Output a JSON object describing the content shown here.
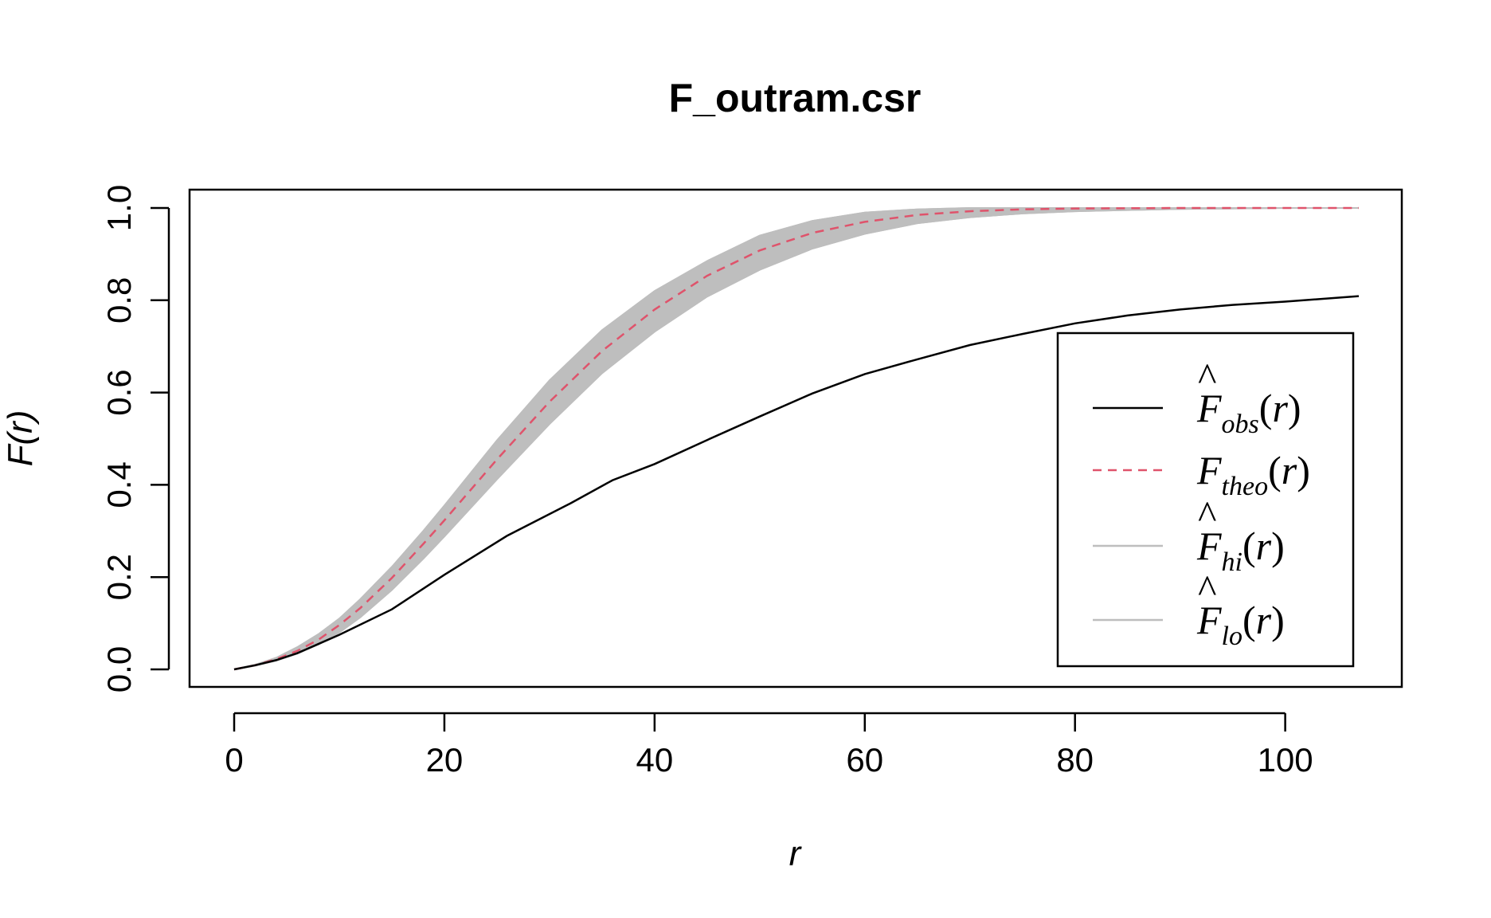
{
  "chart_data": {
    "type": "line",
    "title": "F_outram.csr",
    "xlabel": "r",
    "ylabel": "F(r)",
    "xlim": [
      0,
      107
    ],
    "ylim": [
      0,
      1
    ],
    "x_ticks": [
      "0",
      "20",
      "40",
      "60",
      "80",
      "100"
    ],
    "y_ticks": [
      "0.0",
      "0.2",
      "0.4",
      "0.6",
      "0.8",
      "1.0"
    ],
    "grid": false,
    "legend_position": "bottom-right",
    "legend": [
      {
        "symbol": "F",
        "hat": true,
        "sub": "obs",
        "suffix": "(r)",
        "color": "#000000",
        "dash": false
      },
      {
        "symbol": "F",
        "hat": false,
        "sub": "theo",
        "suffix": "(r)",
        "color": "#DF536B",
        "dash": true
      },
      {
        "symbol": "F",
        "hat": true,
        "sub": "hi",
        "suffix": "(r)",
        "color": "#BEBEBE",
        "dash": false
      },
      {
        "symbol": "F",
        "hat": true,
        "sub": "lo",
        "suffix": "(r)",
        "color": "#BEBEBE",
        "dash": false
      }
    ],
    "series": [
      {
        "name": "obs",
        "color": "#000000",
        "x": [
          0,
          2,
          4,
          6,
          8,
          10,
          15,
          20,
          26,
          32,
          36,
          40,
          45,
          50,
          55,
          60,
          65,
          70,
          75,
          80,
          85,
          90,
          95,
          100,
          107
        ],
        "values": [
          0,
          0.009,
          0.02,
          0.035,
          0.055,
          0.075,
          0.13,
          0.205,
          0.29,
          0.36,
          0.41,
          0.445,
          0.497,
          0.548,
          0.598,
          0.64,
          0.672,
          0.703,
          0.727,
          0.75,
          0.767,
          0.78,
          0.79,
          0.797,
          0.809
        ]
      },
      {
        "name": "theo",
        "color": "#DF536B",
        "x": [
          0,
          2,
          4,
          6,
          8,
          10,
          12,
          15,
          18,
          20,
          25,
          30,
          35,
          40,
          45,
          50,
          55,
          60,
          65,
          70,
          75,
          80,
          90,
          100,
          107
        ],
        "values": [
          0,
          0.009,
          0.022,
          0.04,
          0.064,
          0.096,
          0.133,
          0.198,
          0.272,
          0.323,
          0.455,
          0.58,
          0.69,
          0.78,
          0.853,
          0.908,
          0.946,
          0.97,
          0.985,
          0.993,
          0.997,
          0.999,
          1,
          1,
          1
        ]
      },
      {
        "name": "hi",
        "color": "#BEBEBE",
        "x": [
          0,
          2,
          4,
          6,
          8,
          10,
          12,
          15,
          18,
          20,
          25,
          30,
          35,
          40,
          45,
          50,
          55,
          60,
          65,
          70,
          75,
          80,
          90,
          100,
          107
        ],
        "values": [
          0,
          0.01,
          0.025,
          0.048,
          0.076,
          0.11,
          0.152,
          0.222,
          0.3,
          0.355,
          0.496,
          0.626,
          0.735,
          0.82,
          0.885,
          0.94,
          0.972,
          0.99,
          0.997,
          1,
          1,
          1,
          1,
          1,
          1
        ]
      },
      {
        "name": "lo",
        "color": "#BEBEBE",
        "x": [
          0,
          2,
          4,
          6,
          8,
          10,
          12,
          15,
          18,
          20,
          25,
          30,
          35,
          40,
          45,
          50,
          55,
          60,
          65,
          70,
          75,
          80,
          90,
          100,
          107
        ],
        "values": [
          0,
          0.008,
          0.019,
          0.034,
          0.054,
          0.08,
          0.113,
          0.172,
          0.24,
          0.288,
          0.412,
          0.532,
          0.642,
          0.732,
          0.808,
          0.866,
          0.912,
          0.944,
          0.967,
          0.98,
          0.988,
          0.993,
          0.998,
          1,
          1
        ]
      }
    ]
  }
}
